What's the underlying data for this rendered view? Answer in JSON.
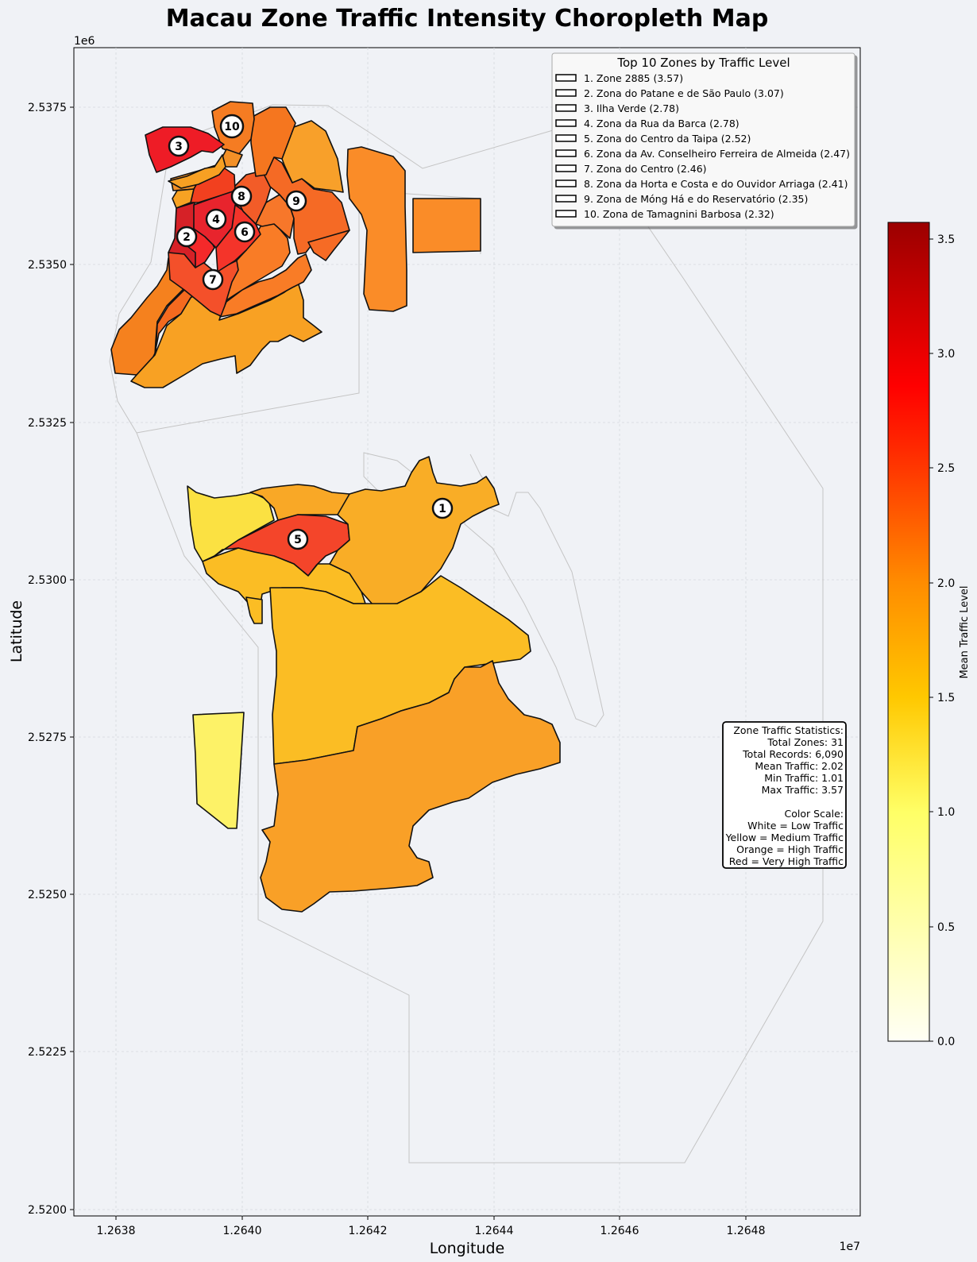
{
  "title": "Macau Zone Traffic Intensity Choropleth Map",
  "xlabel": "Longitude",
  "ylabel": "Latitude",
  "x_offset_label": "1e7",
  "y_offset_label": "1e6",
  "x_ticks": [
    "1.2638",
    "1.2640",
    "1.2642",
    "1.2644",
    "1.2646",
    "1.2648"
  ],
  "y_ticks": [
    "2.5375",
    "2.5350",
    "2.5325",
    "2.5300",
    "2.5275",
    "2.5250",
    "2.5225",
    "2.5200"
  ],
  "colorbar": {
    "label": "Mean Traffic Level",
    "ticks": [
      "0.0",
      "0.5",
      "1.0",
      "1.5",
      "2.0",
      "2.5",
      "3.0",
      "3.5"
    ],
    "min": 0,
    "max": 3.57,
    "colors": [
      "#fffff5",
      "#ffff66",
      "#ffc800",
      "#ff8c00",
      "#ff2b00",
      "#ff0000",
      "#9b0000"
    ]
  },
  "legend": {
    "title": "Top 10 Zones by Traffic Level",
    "items": [
      "1. Zone 2885 (3.57)",
      "2. Zona do Patane e de São Paulo (3.07)",
      "3. Ilha Verde (2.78)",
      "4. Zona da Rua da Barca (2.78)",
      "5. Zona do Centro da Taipa (2.52)",
      "6. Zona da Av. Conselheiro Ferreira de Almeida (2.47)",
      "7. Zona do Centro (2.46)",
      "8. Zona da Horta e Costa e do Ouvidor Arriaga (2.41)",
      "9. Zona de Móng Há e do Reservatório (2.35)",
      "10. Zona de Tamagnini Barbosa (2.32)"
    ]
  },
  "stats": {
    "lines": [
      "Zone Traffic Statistics:",
      "Total Zones: 31",
      "Total Records: 6,090",
      "Mean Traffic: 2.02",
      "Min Traffic: 1.01",
      "Max Traffic: 3.57",
      "",
      "Color Scale:",
      "White = Low Traffic",
      "Yellow = Medium Traffic",
      "Orange = High Traffic",
      "Red = Very High Traffic"
    ]
  },
  "markers": [
    "1",
    "2",
    "3",
    "4",
    "5",
    "6",
    "7",
    "8",
    "9",
    "10"
  ],
  "chart_data": {
    "type": "choropleth",
    "value_name": "Mean Traffic Level",
    "top_zones": [
      {
        "rank": 1,
        "name": "Zone 2885",
        "value": 3.57
      },
      {
        "rank": 2,
        "name": "Zona do Patane e de São Paulo",
        "value": 3.07
      },
      {
        "rank": 3,
        "name": "Ilha Verde",
        "value": 2.78
      },
      {
        "rank": 4,
        "name": "Zona da Rua da Barca",
        "value": 2.78
      },
      {
        "rank": 5,
        "name": "Zona do Centro da Taipa",
        "value": 2.52
      },
      {
        "rank": 6,
        "name": "Zona da Av. Conselheiro Ferreira de Almeida",
        "value": 2.47
      },
      {
        "rank": 7,
        "name": "Zona do Centro",
        "value": 2.46
      },
      {
        "rank": 8,
        "name": "Zona da Horta e Costa e do Ouvidor Arriaga",
        "value": 2.41
      },
      {
        "rank": 9,
        "name": "Zona de Móng Há e do Reservatório",
        "value": 2.35
      },
      {
        "rank": 10,
        "name": "Zona de Tamagnini Barbosa",
        "value": 2.32
      }
    ],
    "total_zones": 31,
    "total_records": 6090,
    "mean": 2.02,
    "min": 1.01,
    "max": 3.57,
    "xlim": [
      12637300.0,
      12649800.0
    ],
    "ylim": [
      2519900.0,
      2538500.0
    ],
    "grid": true,
    "legend_position": "top-right"
  }
}
